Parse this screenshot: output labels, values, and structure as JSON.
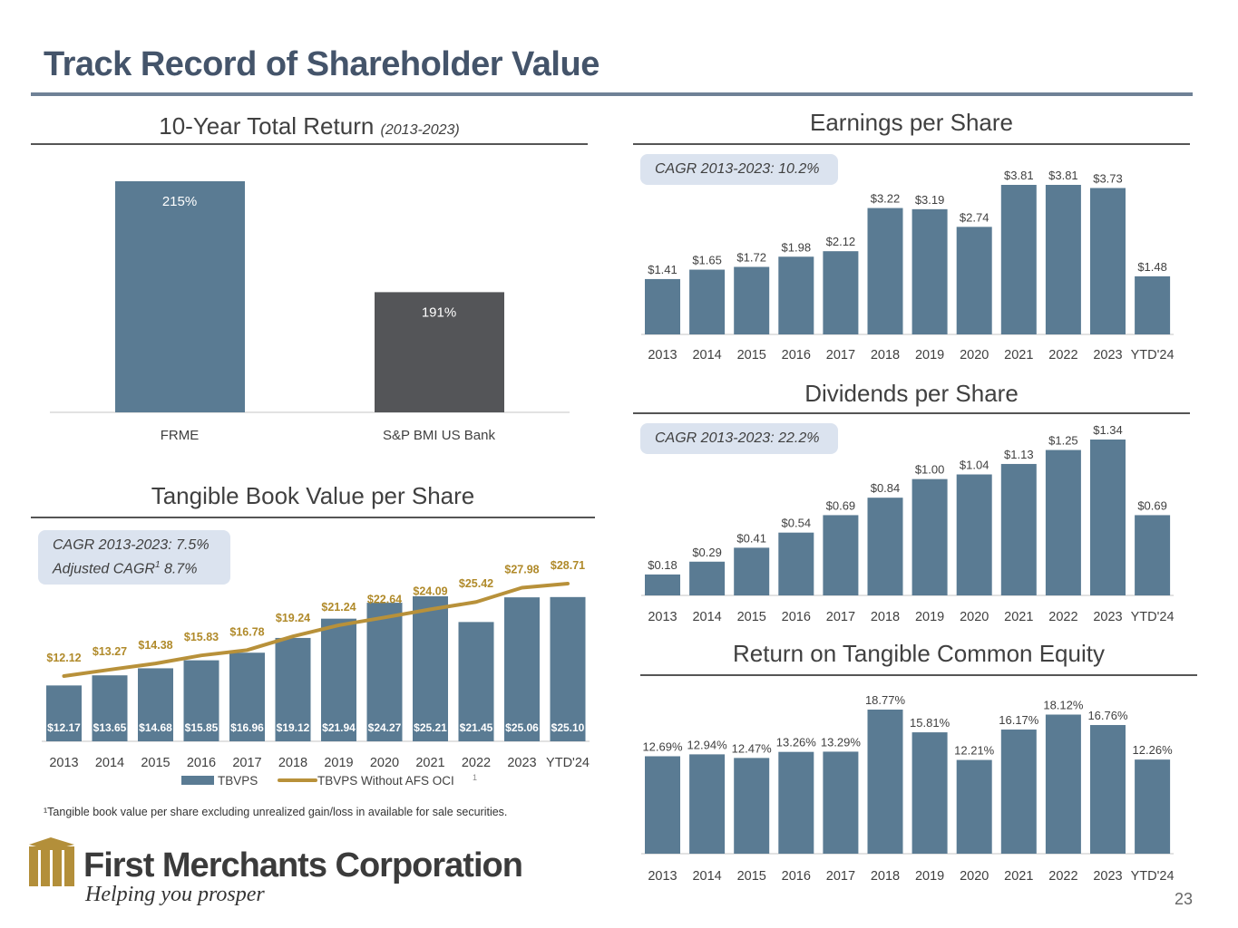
{
  "page": {
    "title": "Track Record of Shareholder Value",
    "page_number": "23",
    "footnote": "¹Tangible book value per share excluding unrealized gain/loss in available for sale securities.",
    "company_name": "First Merchants Corporation",
    "tagline": "Helping you prosper"
  },
  "colors": {
    "title": "#44546a",
    "bar": "#5a7b93",
    "bar_dark": "#545558",
    "line_gold": "#b8913a",
    "label_gold": "#b08a2a",
    "cagr_bg": "#dbe3ef"
  },
  "sections": {
    "total_return": {
      "title": "10-Year Total Return",
      "subtitle": "(2013-2023)"
    },
    "eps": {
      "title": "Earnings per Share",
      "cagr": "CAGR 2013-2023: 10.2%"
    },
    "dps": {
      "title": "Dividends per Share",
      "cagr": "CAGR 2013-2023: 22.2%"
    },
    "rotce": {
      "title": "Return on Tangible Common Equity"
    },
    "tbvps": {
      "title": "Tangible Book Value per Share",
      "cagr_line1": "CAGR 2013-2023: 7.5%",
      "cagr_line2_prefix": "Adjusted CAGR",
      "cagr_line2_sup": "1",
      "cagr_line2_suffix": " 8.7%"
    }
  },
  "chart_data": [
    {
      "id": "total_return",
      "type": "bar",
      "title": "10-Year Total Return (2013-2023)",
      "categories": [
        "FRME",
        "S&P BMI US Bank"
      ],
      "values": [
        215,
        191
      ],
      "labels": [
        "215%",
        "191%"
      ],
      "ylim": [
        165,
        215
      ],
      "grid": false
    },
    {
      "id": "eps",
      "type": "bar",
      "title": "Earnings per Share",
      "categories": [
        "2013",
        "2014",
        "2015",
        "2016",
        "2017",
        "2018",
        "2019",
        "2020",
        "2021",
        "2022",
        "2023",
        "YTD'24"
      ],
      "values": [
        1.41,
        1.65,
        1.72,
        1.98,
        2.12,
        3.22,
        3.19,
        2.74,
        3.81,
        3.81,
        3.73,
        1.48
      ],
      "labels": [
        "$1.41",
        "$1.65",
        "$1.72",
        "$1.98",
        "$2.12",
        "$3.22",
        "$3.19",
        "$2.74",
        "$3.81",
        "$3.81",
        "$3.73",
        "$1.48"
      ],
      "ylim": [
        0,
        3.81
      ],
      "grid": false
    },
    {
      "id": "dps",
      "type": "bar",
      "title": "Dividends per Share",
      "categories": [
        "2013",
        "2014",
        "2015",
        "2016",
        "2017",
        "2018",
        "2019",
        "2020",
        "2021",
        "2022",
        "2023",
        "YTD'24"
      ],
      "values": [
        0.18,
        0.29,
        0.41,
        0.54,
        0.69,
        0.84,
        1.0,
        1.04,
        1.13,
        1.25,
        1.34,
        0.69
      ],
      "labels": [
        "$0.18",
        "$0.29",
        "$0.41",
        "$0.54",
        "$0.69",
        "$0.84",
        "$1.00",
        "$1.04",
        "$1.13",
        "$1.25",
        "$1.34",
        "$0.69"
      ],
      "ylim": [
        0,
        1.34
      ],
      "grid": false
    },
    {
      "id": "rotce",
      "type": "bar",
      "title": "Return on Tangible Common Equity",
      "categories": [
        "2013",
        "2014",
        "2015",
        "2016",
        "2017",
        "2018",
        "2019",
        "2020",
        "2021",
        "2022",
        "2023",
        "YTD'24"
      ],
      "values": [
        12.69,
        12.94,
        12.47,
        13.26,
        13.29,
        18.77,
        15.81,
        12.21,
        16.17,
        18.12,
        16.76,
        12.26
      ],
      "labels": [
        "12.69%",
        "12.94%",
        "12.47%",
        "13.26%",
        "13.29%",
        "18.77%",
        "15.81%",
        "12.21%",
        "16.17%",
        "18.12%",
        "16.76%",
        "12.26%"
      ],
      "ylim": [
        0,
        18.77
      ],
      "grid": false
    },
    {
      "id": "tbvps",
      "type": "bar",
      "title": "Tangible Book Value per Share",
      "categories": [
        "2013",
        "2014",
        "2015",
        "2016",
        "2017",
        "2018",
        "2019",
        "2020",
        "2021",
        "2022",
        "2023",
        "YTD'24"
      ],
      "series": [
        {
          "name": "TBVPS",
          "kind": "bar",
          "values": [
            12.17,
            13.65,
            14.68,
            15.85,
            16.96,
            19.12,
            21.94,
            24.27,
            25.21,
            21.45,
            25.06,
            25.1
          ],
          "labels": [
            "$12.17",
            "$13.65",
            "$14.68",
            "$15.85",
            "$16.96",
            "$19.12",
            "$21.94",
            "$24.27",
            "$25.21",
            "$21.45",
            "$25.06",
            "$25.10"
          ]
        },
        {
          "name": "TBVPS Without AFS OCI",
          "legend_sup": "1",
          "kind": "line",
          "values": [
            12.12,
            13.27,
            14.38,
            15.83,
            16.78,
            19.24,
            21.24,
            22.64,
            24.09,
            25.42,
            27.98,
            28.71
          ],
          "labels": [
            "$12.12",
            "$13.27",
            "$14.38",
            "$15.83",
            "$16.78",
            "$19.24",
            "$21.24",
            "$22.64",
            "$24.09",
            "$25.42",
            "$27.98",
            "$28.71"
          ]
        }
      ],
      "ylim": [
        4,
        25.21
      ],
      "y2lim": [
        12.12,
        28.71
      ],
      "legend": "bottom",
      "grid": false
    }
  ]
}
